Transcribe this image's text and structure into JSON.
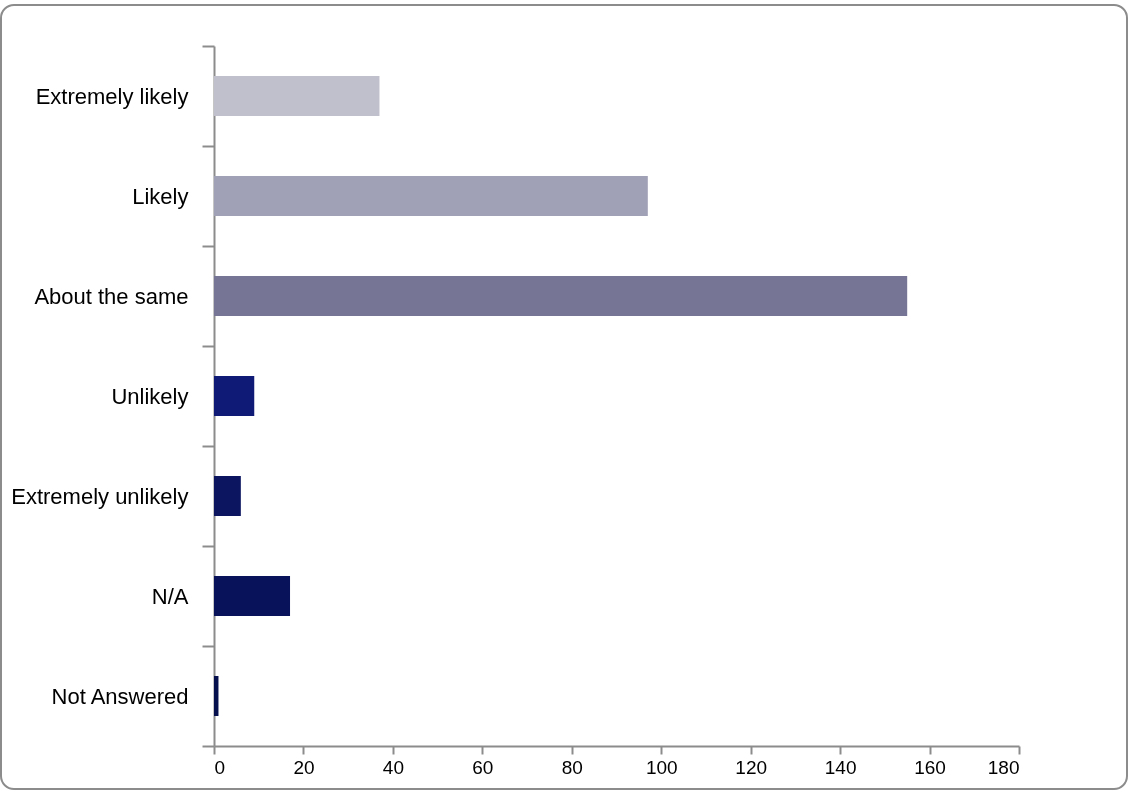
{
  "chart_data": {
    "type": "bar",
    "orientation": "horizontal",
    "categories": [
      "Extremely likely",
      "Likely",
      "About the same",
      "Unlikely",
      "Extremely unlikely",
      "N/A",
      "Not Answered"
    ],
    "values": [
      37,
      97,
      155,
      9,
      6,
      17,
      1
    ],
    "colors": [
      "#c0c0cd",
      "#a0a0b6",
      "#767596",
      "#0e1a76",
      "#0c1660",
      "#08125a",
      "#06104e"
    ],
    "xlim": [
      0,
      180
    ],
    "xticks": [
      0,
      20,
      40,
      60,
      80,
      100,
      120,
      140,
      160,
      180
    ],
    "grid": false,
    "legend": false
  }
}
